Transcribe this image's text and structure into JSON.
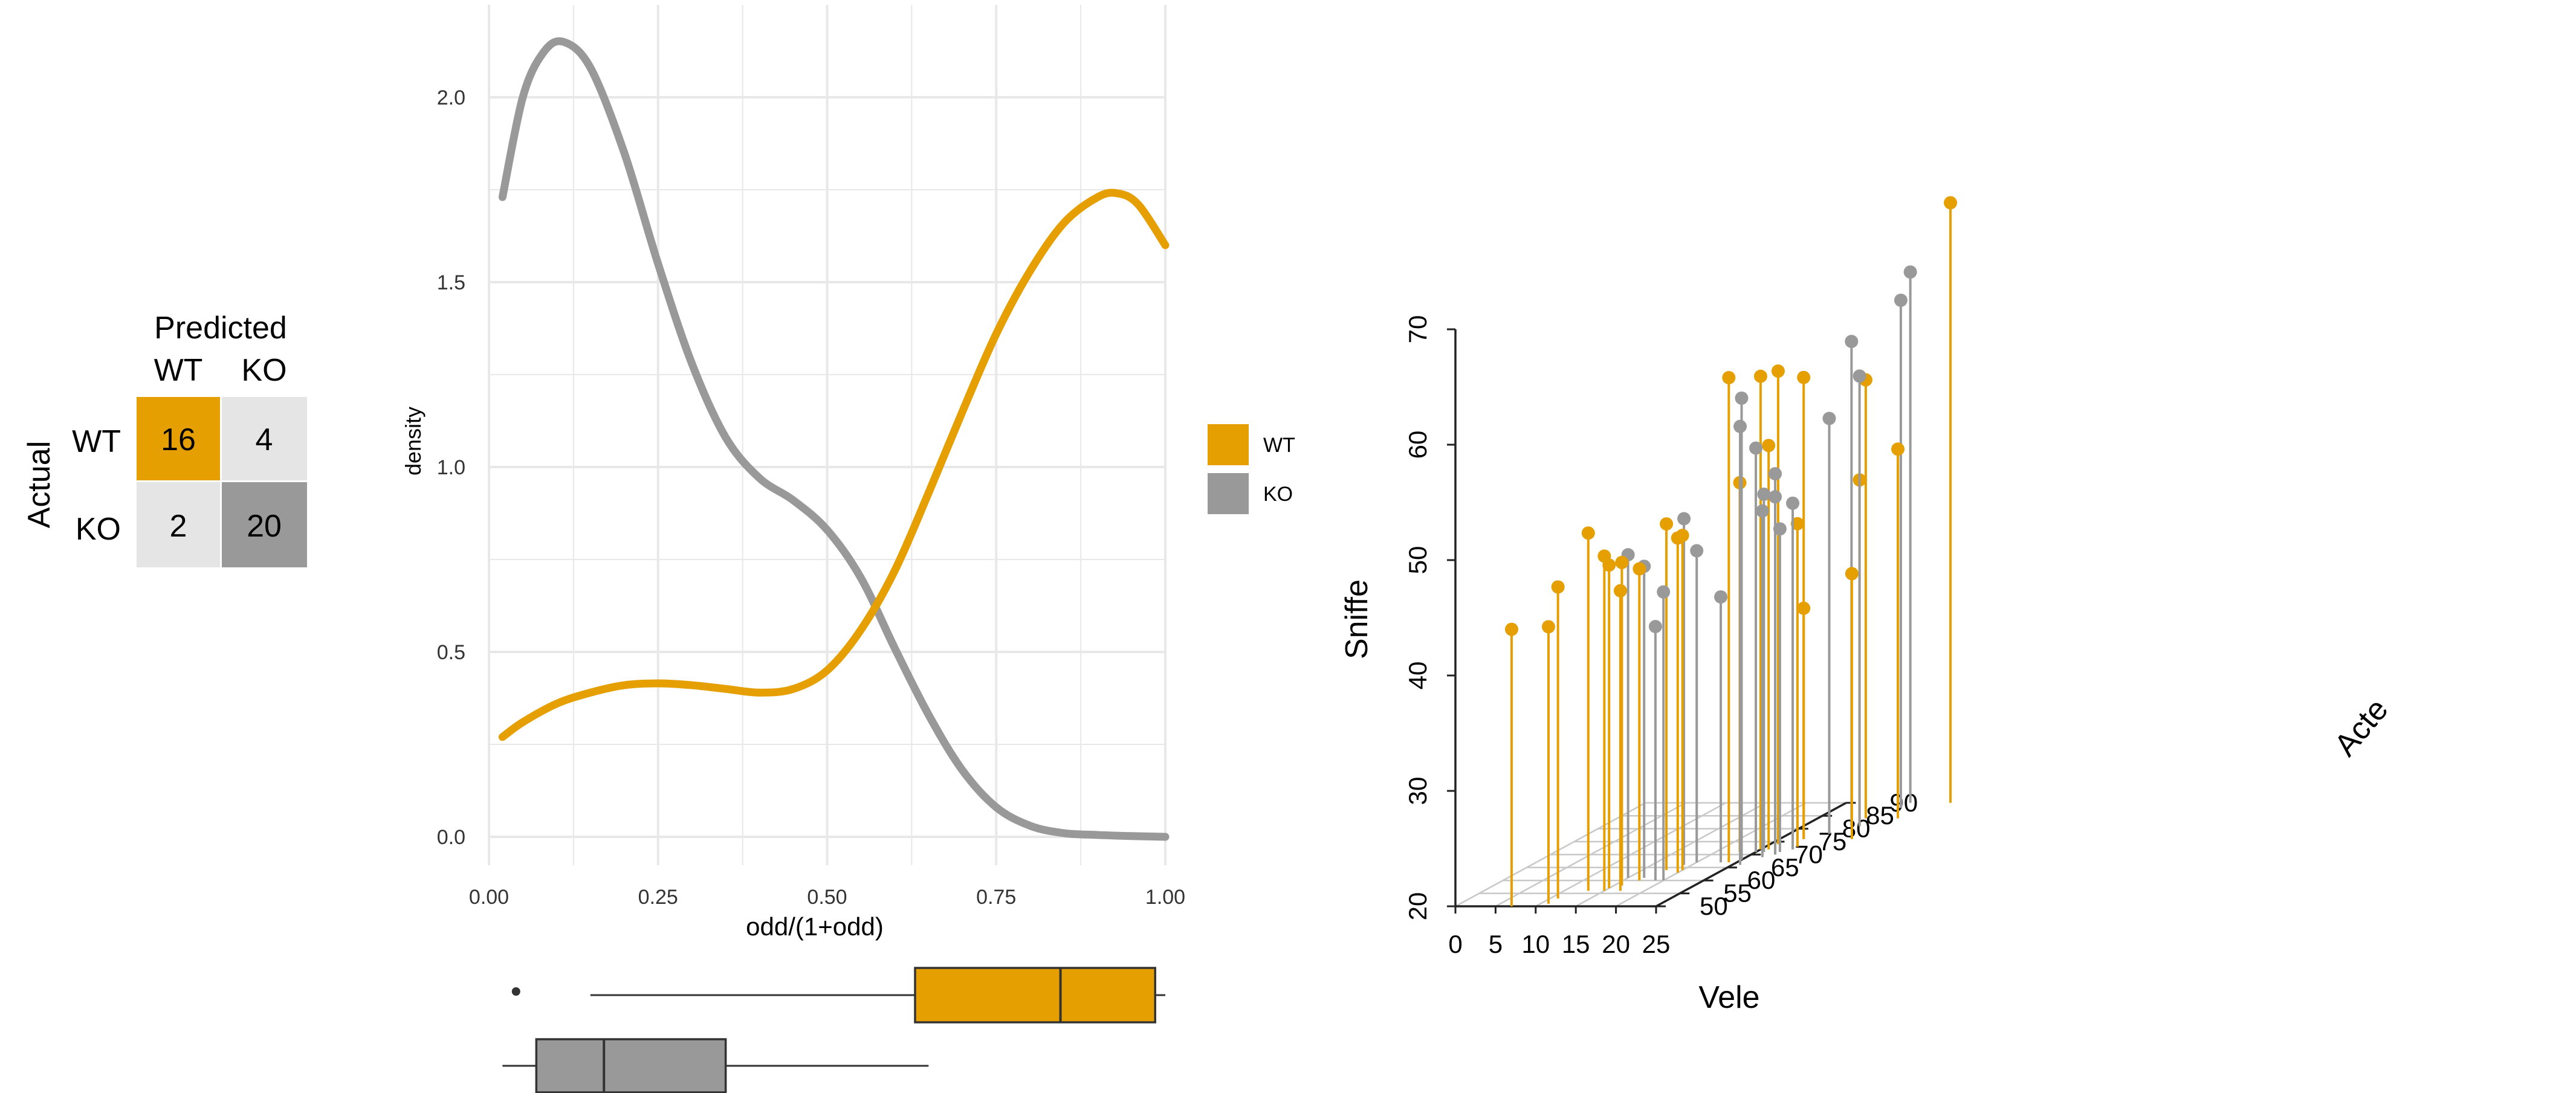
{
  "colors": {
    "wt": "#E69F00",
    "ko": "#999999",
    "light_cell": "#E5E5E5",
    "grid": "#E8E8E8",
    "axis3d": "#C8C8C8"
  },
  "confusion": {
    "title": "Predicted",
    "ylabel": "Actual",
    "col_labels": [
      "WT",
      "KO"
    ],
    "row_labels": [
      "WT",
      "KO"
    ],
    "values": [
      [
        16,
        4
      ],
      [
        2,
        20
      ]
    ]
  },
  "legend": {
    "entries": [
      "WT",
      "KO"
    ]
  },
  "chart_data": [
    {
      "type": "line",
      "title": "",
      "xlabel": "odd/(1+odd)",
      "ylabel": "density",
      "xlim": [
        0,
        1
      ],
      "ylim": [
        0,
        2.2
      ],
      "x_ticks": [
        "0.00",
        "0.25",
        "0.50",
        "0.75",
        "1.00"
      ],
      "y_ticks": [
        "0.0",
        "0.5",
        "1.0",
        "1.5",
        "2.0"
      ],
      "grid": true,
      "legend_position": "right",
      "series": [
        {
          "name": "WT",
          "x": [
            0.02,
            0.05,
            0.1,
            0.15,
            0.2,
            0.25,
            0.3,
            0.35,
            0.4,
            0.45,
            0.5,
            0.55,
            0.6,
            0.65,
            0.7,
            0.75,
            0.8,
            0.85,
            0.9,
            0.93,
            0.96,
            1.0
          ],
          "y": [
            0.27,
            0.31,
            0.36,
            0.39,
            0.41,
            0.415,
            0.41,
            0.4,
            0.39,
            0.4,
            0.45,
            0.56,
            0.72,
            0.93,
            1.15,
            1.36,
            1.53,
            1.66,
            1.73,
            1.74,
            1.71,
            1.6
          ]
        },
        {
          "name": "KO",
          "x": [
            0.02,
            0.05,
            0.08,
            0.11,
            0.15,
            0.2,
            0.25,
            0.3,
            0.35,
            0.4,
            0.45,
            0.5,
            0.55,
            0.6,
            0.65,
            0.7,
            0.75,
            0.8,
            0.85,
            0.9,
            0.95,
            1.0
          ],
          "y": [
            1.73,
            2.0,
            2.12,
            2.15,
            2.08,
            1.85,
            1.55,
            1.28,
            1.08,
            0.97,
            0.91,
            0.83,
            0.7,
            0.51,
            0.33,
            0.18,
            0.08,
            0.03,
            0.01,
            0.005,
            0.002,
            0.0
          ]
        }
      ]
    },
    {
      "type": "box",
      "orientation": "horizontal",
      "xlim": [
        0,
        1
      ],
      "series": [
        {
          "name": "WT",
          "whisker_low": 0.15,
          "q1": 0.63,
          "median": 0.845,
          "q3": 0.985,
          "whisker_high": 1.0,
          "outliers": [
            0.04
          ]
        },
        {
          "name": "KO",
          "whisker_low": 0.02,
          "q1": 0.07,
          "median": 0.17,
          "q3": 0.35,
          "whisker_high": 0.65,
          "outliers": []
        }
      ]
    },
    {
      "type": "scatter3d",
      "xlabel": "Vele",
      "ylabel": "Acte",
      "zlabel": "Sniffe",
      "xlim": [
        0,
        25
      ],
      "ylim": [
        50,
        90
      ],
      "zlim": [
        20,
        70
      ],
      "x_ticks": [
        "0",
        "5",
        "10",
        "15",
        "20",
        "25"
      ],
      "y_ticks": [
        "50",
        "55",
        "60",
        "65",
        "70",
        "75",
        "80",
        "85",
        "90"
      ],
      "z_ticks": [
        "20",
        "30",
        "40",
        "50",
        "60",
        "70"
      ],
      "series": [
        {
          "name": "WT",
          "points": [
            [
              7,
              50,
              44
            ],
            [
              11,
              53,
              47
            ],
            [
              11,
              51,
              44
            ],
            [
              13,
              56,
              51
            ],
            [
              15,
              56,
              49
            ],
            [
              16,
              58,
              48
            ],
            [
              15,
              57,
              48
            ],
            [
              17,
              56,
              46
            ],
            [
              17,
              60,
              47
            ],
            [
              18,
              64,
              50
            ],
            [
              20,
              63,
              49
            ],
            [
              20,
              64,
              49
            ],
            [
              24,
              67,
              62
            ],
            [
              23,
              71,
              52
            ],
            [
              25,
              72,
              61
            ],
            [
              26,
              74,
              61
            ],
            [
              26,
              72,
              55
            ],
            [
              28,
              76,
              60
            ],
            [
              28,
              76,
              40
            ],
            [
              29,
              73,
              48
            ],
            [
              31,
              84,
              58
            ],
            [
              32,
              81,
              50
            ],
            [
              35,
              84,
              52
            ],
            [
              34,
              76,
              43
            ],
            [
              38,
              90,
              72
            ]
          ]
        },
        {
          "name": "KO",
          "points": [
            [
              15,
              61,
              48
            ],
            [
              17,
              61,
              47
            ],
            [
              19,
              60,
              42
            ],
            [
              19,
              66,
              50
            ],
            [
              20,
              60,
              45
            ],
            [
              20,
              67,
              47
            ],
            [
              23,
              67,
              43
            ],
            [
              25,
              68,
              60
            ],
            [
              25,
              71,
              55
            ],
            [
              26,
              71,
              51
            ],
            [
              26,
              66,
              58
            ],
            [
              28,
              70,
              53
            ],
            [
              28,
              70,
              51
            ],
            [
              27,
              69,
              50
            ],
            [
              28,
              71,
              48
            ],
            [
              29,
              72,
              50
            ],
            [
              30,
              78,
              56
            ],
            [
              31,
              81,
              62
            ],
            [
              32,
              81,
              59
            ],
            [
              33,
              88,
              64
            ],
            [
              33,
              90,
              66
            ]
          ]
        }
      ]
    }
  ]
}
